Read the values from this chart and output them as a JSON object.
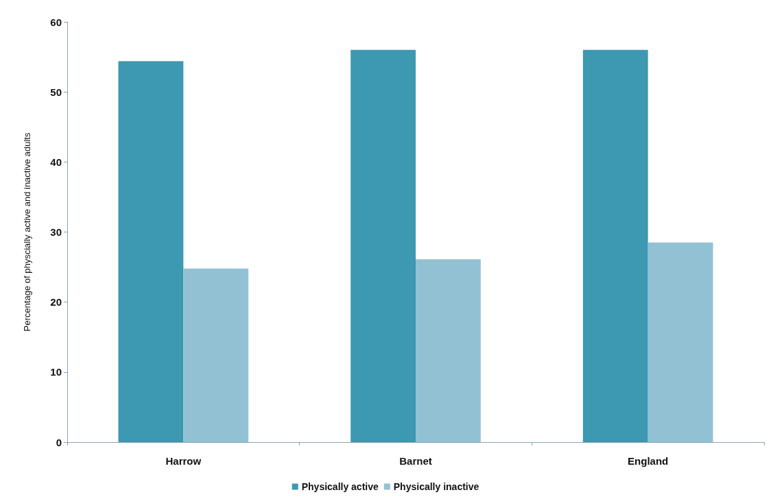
{
  "chart_data": {
    "type": "bar",
    "ylabel": "Percentage of physcially active and inactive adults",
    "categories": [
      "Harrow",
      "Barnet",
      "England"
    ],
    "series": [
      {
        "name": "Physically active",
        "color": "#3d98b1",
        "values": [
          54.4,
          56.0,
          56.0
        ]
      },
      {
        "name": "Physically inactive",
        "color": "#93c1d4",
        "values": [
          24.8,
          26.1,
          28.5
        ]
      }
    ],
    "ylim": [
      0,
      60
    ],
    "yticks": [
      0,
      10,
      20,
      30,
      40,
      50,
      60
    ],
    "grid": false,
    "legend": "bottom"
  }
}
